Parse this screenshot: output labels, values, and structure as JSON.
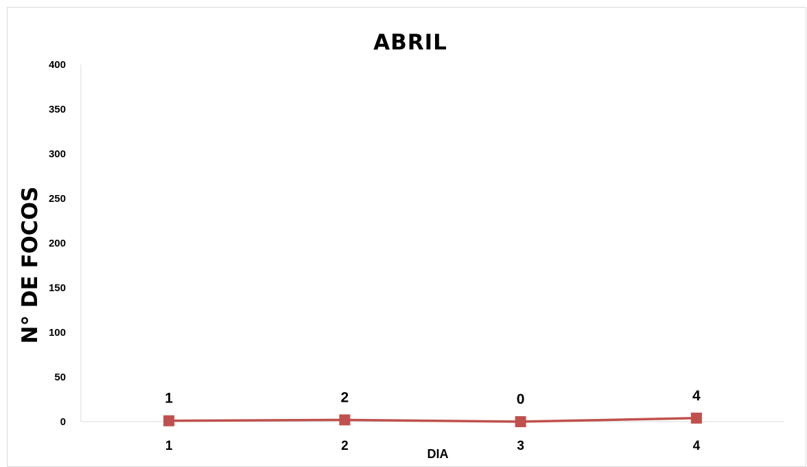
{
  "chart_data": {
    "type": "line",
    "title": "ABRIL",
    "xlabel": "DIA",
    "ylabel": "N° DE FOCOS",
    "categories": [
      "1",
      "2",
      "3",
      "4"
    ],
    "yticks": [
      "0",
      "50",
      "100",
      "150",
      "200",
      "250",
      "300",
      "350",
      "400"
    ],
    "ylim": [
      0,
      400
    ],
    "grid": false,
    "legend": "none",
    "series": [
      {
        "values": [
          1,
          2,
          0,
          4
        ],
        "data_labels": [
          "1",
          "2",
          "0",
          "4"
        ],
        "color": "#c0504d"
      }
    ]
  }
}
